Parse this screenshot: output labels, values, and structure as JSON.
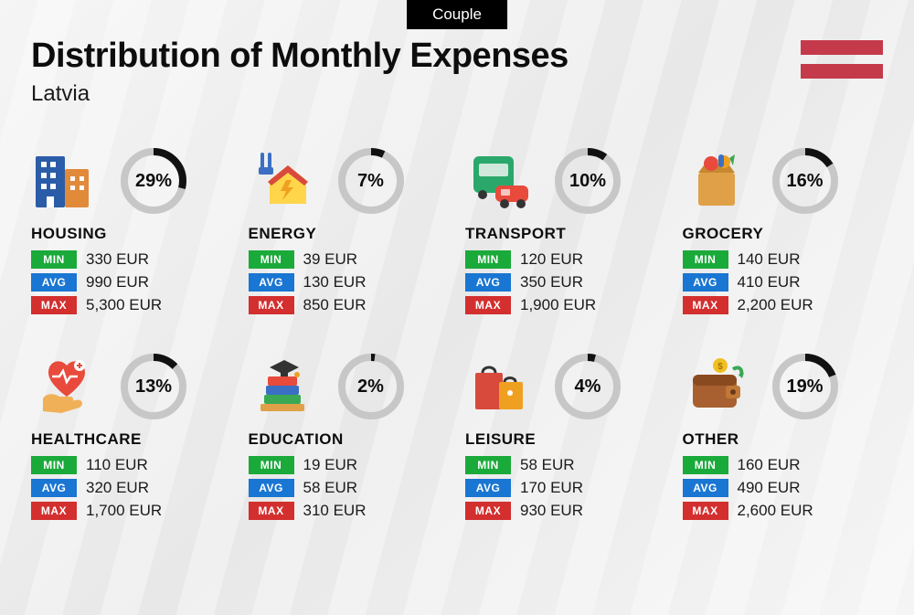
{
  "badge": "Couple",
  "title": "Distribution of Monthly Expenses",
  "subtitle": "Latvia",
  "flag": {
    "stripe_color": "#c43a4b",
    "stripe_count": 2
  },
  "currency": "EUR",
  "labels": {
    "min": "MIN",
    "avg": "AVG",
    "max": "MAX"
  },
  "colors": {
    "min_bg": "#1aaa3a",
    "avg_bg": "#1976d2",
    "max_bg": "#d32f2f",
    "ring_track": "#c7c7c7",
    "ring_fill": "#111111",
    "text": "#0d0d0d",
    "background": "#f1f1f1"
  },
  "ring": {
    "stroke_width": 8,
    "radius": 32
  },
  "typography": {
    "title_fontsize": 38,
    "title_weight": 900,
    "subtitle_fontsize": 24,
    "category_fontsize": 17,
    "category_weight": 900,
    "pct_fontsize": 20,
    "pct_weight": 900,
    "value_fontsize": 17
  },
  "categories": [
    {
      "id": "housing",
      "name": "HOUSING",
      "pct": 29,
      "min": "330 EUR",
      "avg": "990 EUR",
      "max": "5,300 EUR",
      "icon": "building-icon"
    },
    {
      "id": "energy",
      "name": "ENERGY",
      "pct": 7,
      "min": "39 EUR",
      "avg": "130 EUR",
      "max": "850 EUR",
      "icon": "energy-house-icon"
    },
    {
      "id": "transport",
      "name": "TRANSPORT",
      "pct": 10,
      "min": "120 EUR",
      "avg": "350 EUR",
      "max": "1,900 EUR",
      "icon": "bus-car-icon"
    },
    {
      "id": "grocery",
      "name": "GROCERY",
      "pct": 16,
      "min": "140 EUR",
      "avg": "410 EUR",
      "max": "2,200 EUR",
      "icon": "grocery-bag-icon"
    },
    {
      "id": "healthcare",
      "name": "HEALTHCARE",
      "pct": 13,
      "min": "110 EUR",
      "avg": "320 EUR",
      "max": "1,700 EUR",
      "icon": "heart-hand-icon"
    },
    {
      "id": "education",
      "name": "EDUCATION",
      "pct": 2,
      "min": "19 EUR",
      "avg": "58 EUR",
      "max": "310 EUR",
      "icon": "books-cap-icon"
    },
    {
      "id": "leisure",
      "name": "LEISURE",
      "pct": 4,
      "min": "58 EUR",
      "avg": "170 EUR",
      "max": "930 EUR",
      "icon": "shopping-bags-icon"
    },
    {
      "id": "other",
      "name": "OTHER",
      "pct": 19,
      "min": "160 EUR",
      "avg": "490 EUR",
      "max": "2,600 EUR",
      "icon": "wallet-icon"
    }
  ]
}
